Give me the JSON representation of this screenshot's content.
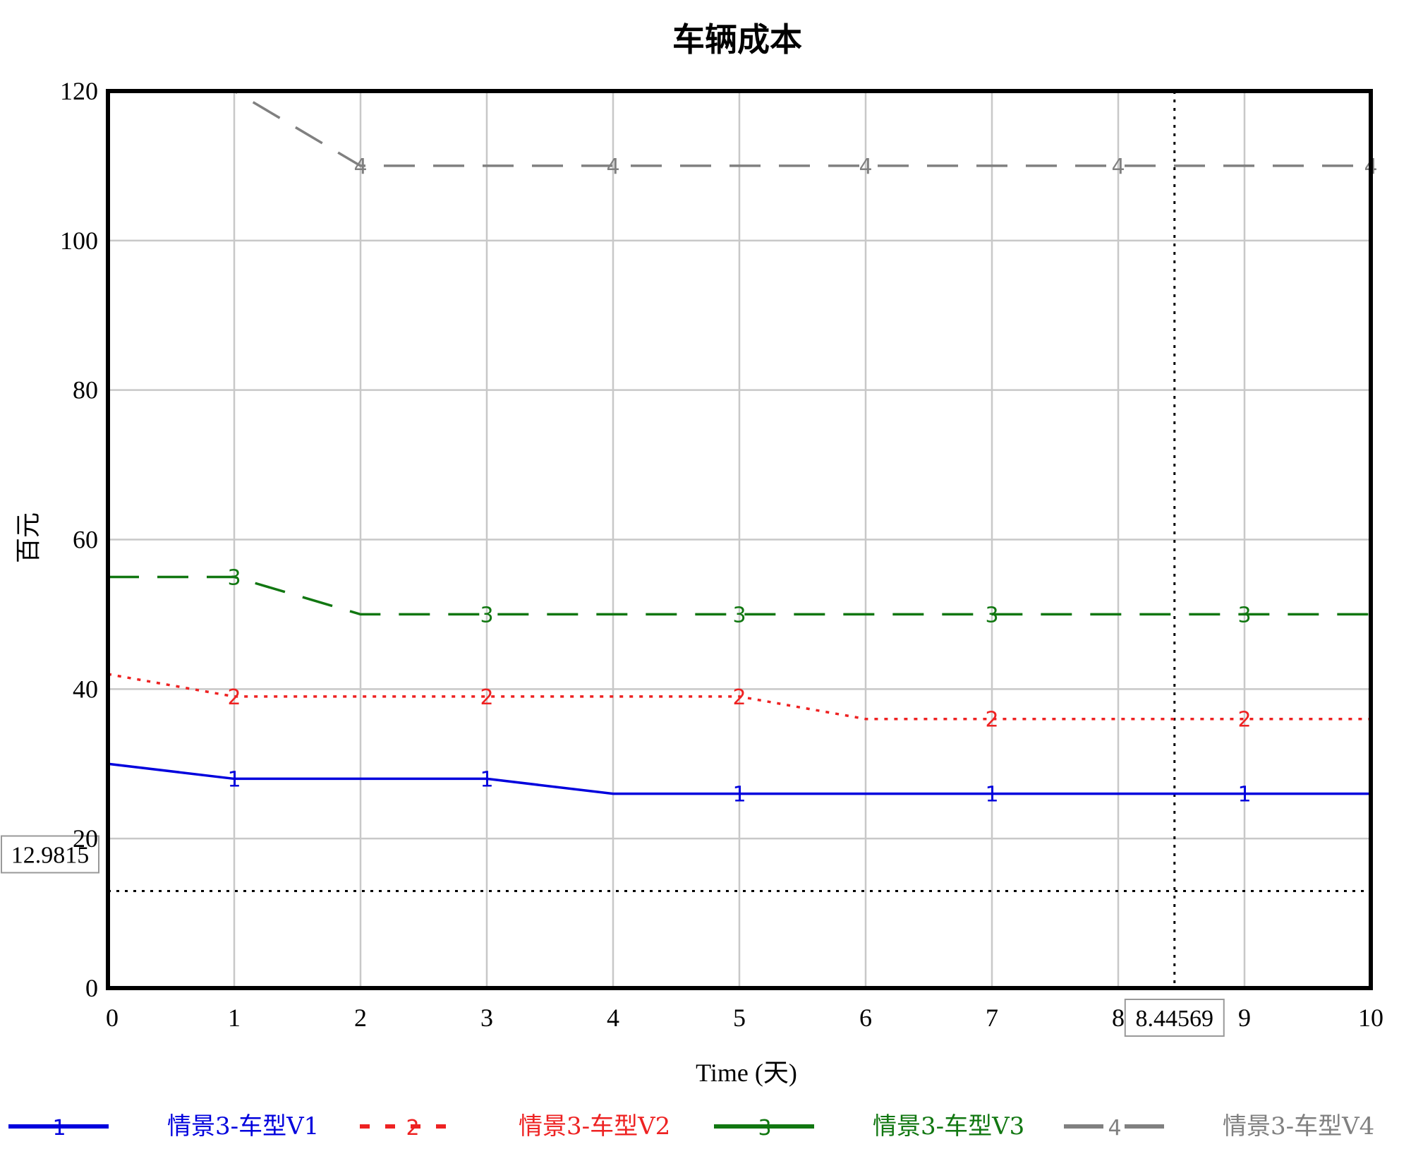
{
  "chart_data": {
    "type": "line",
    "title": "车辆成本",
    "xlabel": "Time (天)",
    "ylabel": "百元",
    "xlim": [
      0,
      10
    ],
    "ylim": [
      0,
      120
    ],
    "x_ticks": [
      0,
      1,
      2,
      3,
      4,
      5,
      6,
      7,
      8,
      9,
      10
    ],
    "y_ticks": [
      0,
      20,
      40,
      60,
      80,
      100,
      120
    ],
    "grid": true,
    "legend_position": "bottom",
    "cursor": {
      "x": 8.44569,
      "y": 12.9815,
      "x_label": "8.44569",
      "y_label": "12.9815"
    },
    "series": [
      {
        "name": "情景3-车型V1",
        "marker": "1",
        "color": "#0000dd",
        "style": "solid",
        "x": [
          0,
          1,
          2,
          3,
          4,
          5,
          6,
          7,
          8,
          9,
          10
        ],
        "y": [
          30,
          28,
          28,
          28,
          26,
          26,
          26,
          26,
          26,
          26,
          26
        ],
        "marker_x": [
          1,
          3,
          5,
          7,
          9
        ]
      },
      {
        "name": "情景3-车型V2",
        "marker": "2",
        "color": "#ee2222",
        "style": "dotted",
        "x": [
          0,
          1,
          2,
          3,
          4,
          5,
          6,
          7,
          8,
          9,
          10
        ],
        "y": [
          42,
          39,
          39,
          39,
          39,
          39,
          36,
          36,
          36,
          36,
          36
        ],
        "marker_x": [
          1,
          3,
          5,
          7,
          9
        ]
      },
      {
        "name": "情景3-车型V3",
        "marker": "3",
        "color": "#117711",
        "style": "dashed",
        "x": [
          0,
          1,
          2,
          3,
          4,
          5,
          6,
          7,
          8,
          9,
          10
        ],
        "y": [
          55,
          55,
          50,
          50,
          50,
          50,
          50,
          50,
          50,
          50,
          50
        ],
        "marker_x": [
          1,
          3,
          5,
          7,
          9
        ]
      },
      {
        "name": "情景3-车型V4",
        "marker": "4",
        "color": "#808080",
        "style": "dashed",
        "x": [
          0,
          1,
          2,
          3,
          4,
          5,
          6,
          7,
          8,
          9,
          10
        ],
        "y": [
          120,
          120,
          110,
          110,
          110,
          110,
          110,
          110,
          110,
          110,
          110
        ],
        "marker_x": [
          2,
          4,
          6,
          8,
          10
        ]
      }
    ]
  }
}
